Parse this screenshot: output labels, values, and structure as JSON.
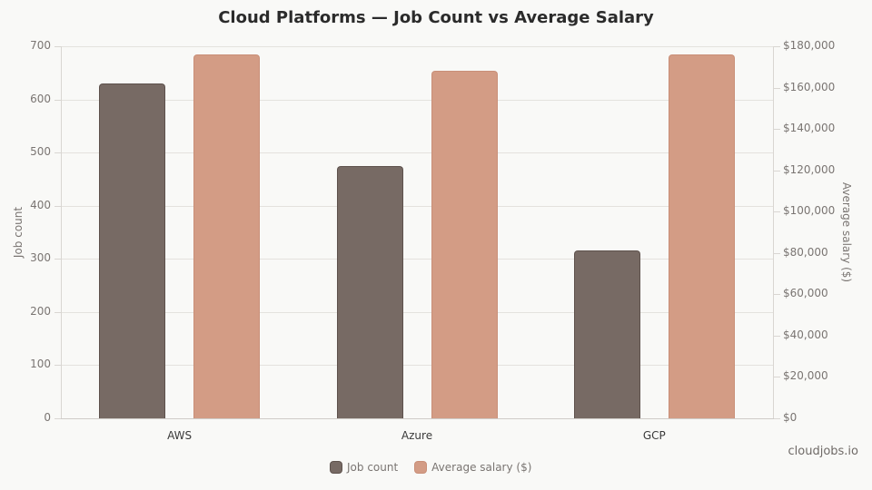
{
  "title": "Cloud Platforms — Job Count vs Average Salary",
  "source": "cloudjobs.io",
  "colors": {
    "job_count": "#776a64",
    "average_salary": "#d39c85",
    "background": "#f9f9f7"
  },
  "axes": {
    "left": {
      "title": "Job count",
      "ticks": [
        "0",
        "100",
        "200",
        "300",
        "400",
        "500",
        "600",
        "700"
      ]
    },
    "right": {
      "title": "Average salary ($)",
      "ticks": [
        "$0",
        "$20,000",
        "$40,000",
        "$60,000",
        "$80,000",
        "$100,000",
        "$120,000",
        "$140,000",
        "$160,000",
        "$180,000"
      ]
    }
  },
  "legend": {
    "items": [
      "Job count",
      "Average salary ($)"
    ]
  },
  "chart_data": {
    "type": "bar",
    "title": "Cloud Platforms — Job Count vs Average Salary",
    "categories": [
      "AWS",
      "Azure",
      "GCP"
    ],
    "series": [
      {
        "name": "Job count",
        "axis": "left",
        "values": [
          630,
          474,
          316
        ]
      },
      {
        "name": "Average salary ($)",
        "axis": "right",
        "values": [
          176000,
          168000,
          176000
        ]
      }
    ],
    "xlabel": "",
    "ylabel": "Job count",
    "ylabel_right": "Average salary ($)",
    "ylim": [
      0,
      700
    ],
    "ylim_right": [
      0,
      180000
    ],
    "grid": true,
    "legend_position": "bottom"
  }
}
